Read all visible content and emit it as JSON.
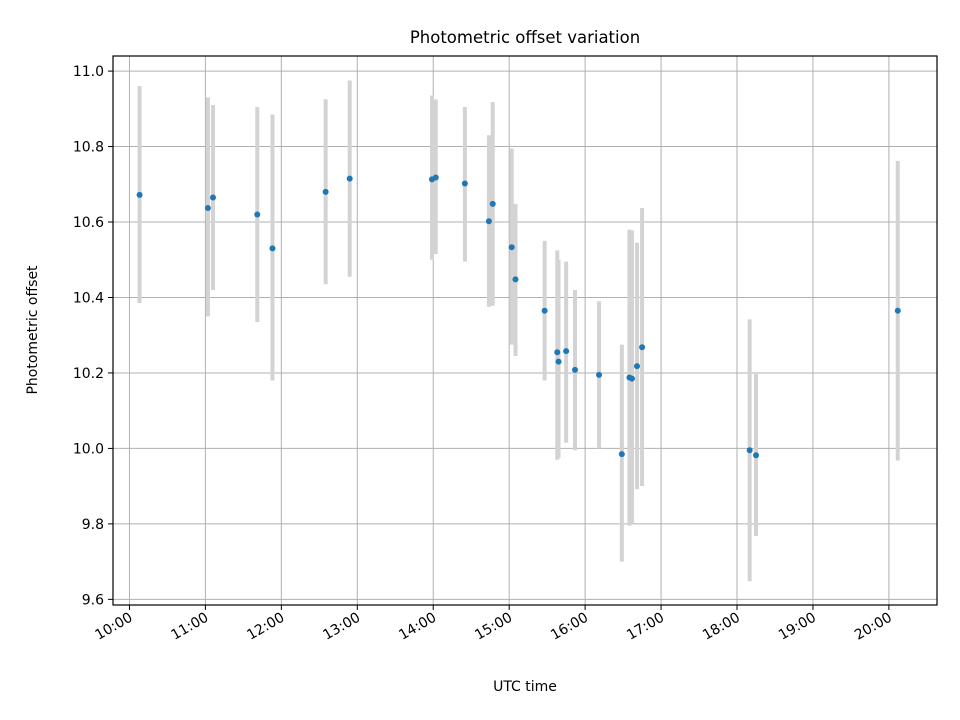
{
  "chart_data": {
    "type": "scatter",
    "title": "Photometric offset variation",
    "xlabel": "UTC time",
    "ylabel": "Photometric offset",
    "x_ticks": [
      "10:00",
      "11:00",
      "12:00",
      "13:00",
      "14:00",
      "15:00",
      "16:00",
      "17:00",
      "18:00",
      "19:00",
      "20:00"
    ],
    "y_ticks": [
      "9.6",
      "9.8",
      "10.0",
      "10.2",
      "10.4",
      "10.6",
      "10.8",
      "11.0"
    ],
    "xlim": [
      "09:47",
      "20:38"
    ],
    "ylim": [
      9.585,
      11.04
    ],
    "grid": true,
    "marker_color": "#1f77b4",
    "errorbar_color": "#d3d3d3",
    "points": [
      {
        "x": "10:08",
        "y": 10.672,
        "ylo": 10.385,
        "yhi": 10.96
      },
      {
        "x": "11:02",
        "y": 10.637,
        "ylo": 10.35,
        "yhi": 10.93
      },
      {
        "x": "11:06",
        "y": 10.665,
        "ylo": 10.42,
        "yhi": 10.91
      },
      {
        "x": "11:41",
        "y": 10.62,
        "ylo": 10.335,
        "yhi": 10.905
      },
      {
        "x": "11:53",
        "y": 10.53,
        "ylo": 10.18,
        "yhi": 10.885
      },
      {
        "x": "12:35",
        "y": 10.68,
        "ylo": 10.435,
        "yhi": 10.925
      },
      {
        "x": "12:54",
        "y": 10.715,
        "ylo": 10.455,
        "yhi": 10.975
      },
      {
        "x": "13:59",
        "y": 10.713,
        "ylo": 10.5,
        "yhi": 10.935
      },
      {
        "x": "14:02",
        "y": 10.718,
        "ylo": 10.515,
        "yhi": 10.925
      },
      {
        "x": "14:25",
        "y": 10.702,
        "ylo": 10.495,
        "yhi": 10.905
      },
      {
        "x": "14:44",
        "y": 10.602,
        "ylo": 10.375,
        "yhi": 10.83
      },
      {
        "x": "14:47",
        "y": 10.648,
        "ylo": 10.378,
        "yhi": 10.918
      },
      {
        "x": "15:02",
        "y": 10.533,
        "ylo": 10.275,
        "yhi": 10.795
      },
      {
        "x": "15:05",
        "y": 10.448,
        "ylo": 10.245,
        "yhi": 10.648
      },
      {
        "x": "15:28",
        "y": 10.365,
        "ylo": 10.18,
        "yhi": 10.55
      },
      {
        "x": "15:38",
        "y": 10.255,
        "ylo": 9.97,
        "yhi": 10.525
      },
      {
        "x": "15:39",
        "y": 10.23,
        "ylo": 9.975,
        "yhi": 10.5
      },
      {
        "x": "15:45",
        "y": 10.258,
        "ylo": 10.015,
        "yhi": 10.495
      },
      {
        "x": "15:52",
        "y": 10.208,
        "ylo": 9.995,
        "yhi": 10.42
      },
      {
        "x": "16:11",
        "y": 10.195,
        "ylo": 10.0,
        "yhi": 10.39
      },
      {
        "x": "16:29",
        "y": 9.985,
        "ylo": 9.7,
        "yhi": 10.275
      },
      {
        "x": "16:35",
        "y": 10.188,
        "ylo": 9.795,
        "yhi": 10.58
      },
      {
        "x": "16:37",
        "y": 10.185,
        "ylo": 9.8,
        "yhi": 10.578
      },
      {
        "x": "16:41",
        "y": 10.218,
        "ylo": 9.892,
        "yhi": 10.545
      },
      {
        "x": "16:45",
        "y": 10.268,
        "ylo": 9.9,
        "yhi": 10.637
      },
      {
        "x": "18:10",
        "y": 9.995,
        "ylo": 9.648,
        "yhi": 10.342
      },
      {
        "x": "18:15",
        "y": 9.982,
        "ylo": 9.768,
        "yhi": 10.197
      },
      {
        "x": "20:07",
        "y": 10.365,
        "ylo": 9.968,
        "yhi": 10.762
      }
    ]
  }
}
